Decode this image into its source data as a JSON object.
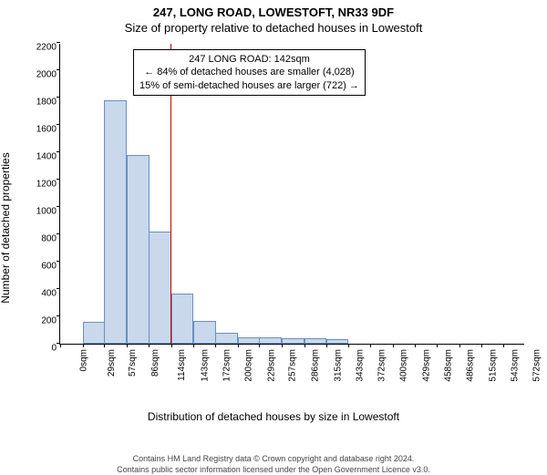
{
  "header": {
    "main": "247, LONG ROAD, LOWESTOFT, NR33 9DF",
    "sub": "Size of property relative to detached houses in Lowestoft"
  },
  "chart": {
    "type": "histogram",
    "ylabel": "Number of detached properties",
    "xlabel": "Distribution of detached houses by size in Lowestoft",
    "ylim": [
      0,
      2200
    ],
    "ytick_step": 200,
    "yticks": [
      0,
      200,
      400,
      600,
      800,
      1000,
      1200,
      1400,
      1600,
      1800,
      2000,
      2200
    ],
    "xlim": [
      0,
      600
    ],
    "xticks": [
      "0sqm",
      "29sqm",
      "57sqm",
      "86sqm",
      "114sqm",
      "143sqm",
      "172sqm",
      "200sqm",
      "229sqm",
      "257sqm",
      "286sqm",
      "315sqm",
      "343sqm",
      "372sqm",
      "400sqm",
      "429sqm",
      "458sqm",
      "486sqm",
      "515sqm",
      "543sqm",
      "572sqm"
    ],
    "xtick_positions": [
      0,
      29,
      57,
      86,
      114,
      143,
      172,
      200,
      229,
      257,
      286,
      315,
      343,
      372,
      400,
      429,
      458,
      486,
      515,
      543,
      572
    ],
    "bars": {
      "bin_width": 29,
      "values": [
        0,
        160,
        1780,
        1380,
        820,
        370,
        170,
        80,
        50,
        45,
        40,
        40,
        35,
        0,
        0,
        0,
        0,
        0,
        0,
        0,
        0
      ],
      "fill_color": "#c9d8ea",
      "border_color": "#6a8fc3"
    },
    "reference_line": {
      "x": 142,
      "color": "#cc0000"
    },
    "info_box": {
      "lines": [
        "247 LONG ROAD: 142sqm",
        "← 84% of detached houses are smaller (4,028)",
        "15% of semi-detached houses are larger (722) →"
      ]
    },
    "plot_background": "#ffffff",
    "axis_color": "#000000",
    "label_fontsize": 12,
    "tick_fontsize": 10
  },
  "footer": {
    "line1": "Contains HM Land Registry data © Crown copyright and database right 2024.",
    "line2": "Contains public sector information licensed under the Open Government Licence v3.0."
  }
}
